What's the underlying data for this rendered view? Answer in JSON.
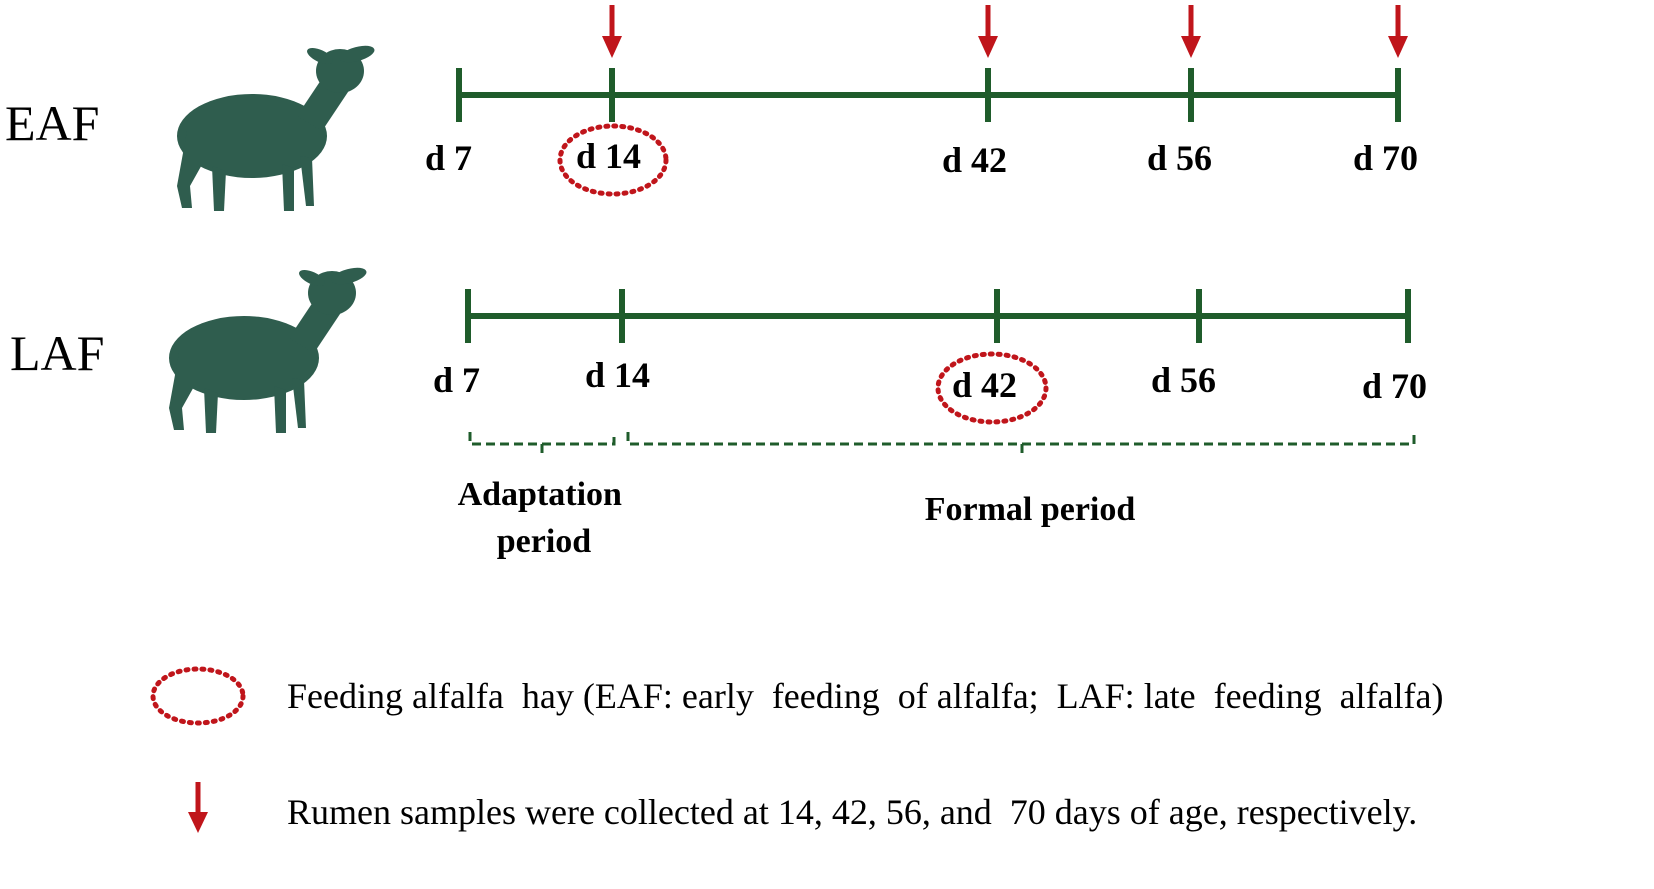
{
  "colors": {
    "timeline": "#1f5c2b",
    "lamb": "#2f5d4e",
    "marker": "#c0151b",
    "text": "#000000"
  },
  "days": [
    "d 7",
    "d 14",
    "d 42",
    "d 56",
    "d 70"
  ],
  "groups": [
    {
      "name": "EAF",
      "icon": "lamb-icon",
      "circled_day": "d 14",
      "sample_arrows_at": [
        "d 14",
        "d 42",
        "d 56",
        "d 70"
      ]
    },
    {
      "name": "LAF",
      "icon": "lamb-icon",
      "circled_day": "d 42",
      "sample_arrows_at": []
    }
  ],
  "periods": [
    {
      "label_lines": [
        "Adaptation",
        "period"
      ],
      "from": "d 7",
      "to": "d 14"
    },
    {
      "label_lines": [
        "Formal period"
      ],
      "from": "d 14",
      "to": "d 70"
    }
  ],
  "legend": {
    "circle_text": "Feeding alfalfa  hay (EAF: early  feeding  of alfalfa;  LAF: late  feeding  alfalfa)",
    "arrow_text": "Rumen samples were collected at 14, 42, 56, and  70 days of age, respectively."
  }
}
